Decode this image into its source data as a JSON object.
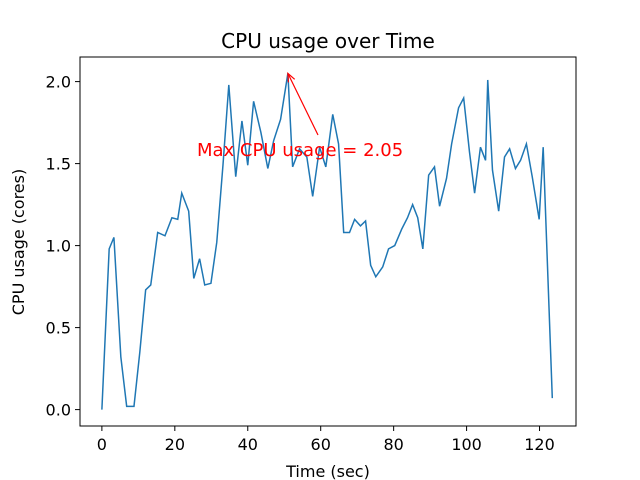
{
  "chart_data": {
    "type": "line",
    "title": "CPU usage over Time",
    "x_label": "Time (sec)",
    "y_label": "CPU usage (cores)",
    "x": [
      0,
      2,
      3.3,
      5.2,
      6.8,
      8.8,
      10.4,
      12,
      13.4,
      15.3,
      17.3,
      19.2,
      20.8,
      21.9,
      23.8,
      25.2,
      26.8,
      28.2,
      29.9,
      31.5,
      33.2,
      34.8,
      36.7,
      38.4,
      40,
      41.6,
      43.6,
      45.5,
      47.1,
      49,
      51,
      52.3,
      54.2,
      56.2,
      57.8,
      59.7,
      61.4,
      63.3,
      64.9,
      66.3,
      67.9,
      69.3,
      70.9,
      72.3,
      73.7,
      75.1,
      77,
      78.6,
      80.3,
      82.2,
      83.8,
      85.2,
      86.6,
      88,
      89.6,
      91.2,
      92.6,
      94.5,
      95.9,
      97.8,
      99.2,
      100.8,
      102.2,
      103.8,
      105.2,
      105.8,
      107.1,
      108.8,
      110.4,
      111.8,
      113.4,
      114.8,
      116.4,
      118,
      119.9,
      121,
      123.5
    ],
    "series": [
      {
        "color": "#1f77b4",
        "values": [
          0,
          0.98,
          1.05,
          0.32,
          0.02,
          0.02,
          0.35,
          0.73,
          0.76,
          1.08,
          1.06,
          1.17,
          1.16,
          1.32,
          1.21,
          0.8,
          0.92,
          0.76,
          0.77,
          1.02,
          1.49,
          1.98,
          1.42,
          1.76,
          1.49,
          1.88,
          1.69,
          1.47,
          1.64,
          1.77,
          2.05,
          1.48,
          1.59,
          1.54,
          1.3,
          1.6,
          1.48,
          1.8,
          1.62,
          1.08,
          1.08,
          1.16,
          1.12,
          1.15,
          0.88,
          0.81,
          0.87,
          0.98,
          1.0,
          1.1,
          1.17,
          1.25,
          1.17,
          0.98,
          1.43,
          1.48,
          1.24,
          1.41,
          1.62,
          1.84,
          1.9,
          1.57,
          1.32,
          1.6,
          1.52,
          2.01,
          1.46,
          1.21,
          1.54,
          1.59,
          1.47,
          1.52,
          1.62,
          1.42,
          1.16,
          1.6,
          0.07
        ]
      }
    ],
    "annotation": {
      "text": "Max CPU usage = 2.05",
      "color": "#ff0000"
    },
    "xlim": [
      -6,
      130
    ],
    "xticks": [
      0,
      20,
      40,
      60,
      80,
      100,
      120
    ],
    "ylim": [
      -0.1,
      2.15
    ],
    "yticks": [
      {
        "value": 0,
        "label": "0.0"
      },
      0.5,
      {
        "value": 1,
        "label": "1.0"
      },
      1.5,
      {
        "value": 2,
        "label": "2.0"
      }
    ]
  }
}
